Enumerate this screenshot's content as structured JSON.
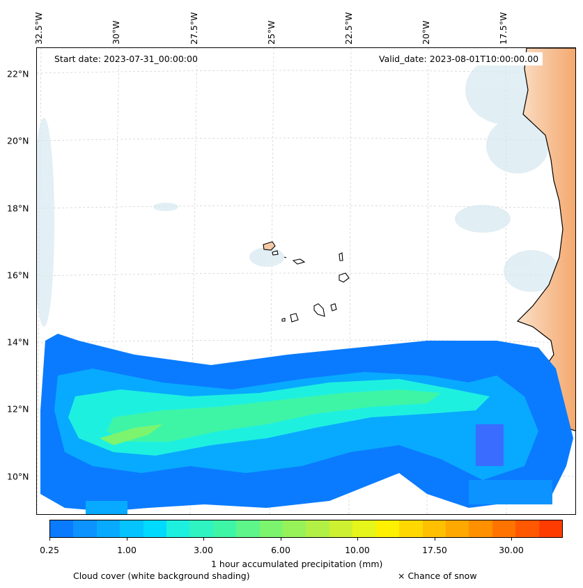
{
  "map": {
    "lon_labels": [
      "32.5°W",
      "30°W",
      "27.5°W",
      "25°W",
      "22.5°W",
      "20°W",
      "17.5°W"
    ],
    "lat_labels": [
      "22°N",
      "20°N",
      "18°N",
      "16°N",
      "14°N",
      "12°N",
      "10°N"
    ],
    "start_date": "Start date: 2023-07-31_00:00:00",
    "valid_date": "Valid_date: 2023-08-01T10:00:00.00"
  },
  "colorbar": {
    "colors": [
      "#0a7bff",
      "#0d93ff",
      "#08aaff",
      "#04c3ff",
      "#00daff",
      "#1ef0e0",
      "#2ff3c0",
      "#3ef5a6",
      "#5ef58a",
      "#7cf46e",
      "#97f25a",
      "#b2f046",
      "#cdf031",
      "#e6f51a",
      "#fdf000",
      "#ffd800",
      "#ffc000",
      "#ffa800",
      "#ff9000",
      "#ff7400",
      "#ff5800",
      "#ff3c00"
    ],
    "tick_labels": [
      "0.25",
      "1.00",
      "3.00",
      "6.00",
      "10.00",
      "17.50",
      "30.00"
    ],
    "label": "1 hour accumulated precipitation (mm)"
  },
  "legend": {
    "cloud_cover": "Cloud cover (white background shading)",
    "snow": "× Chance of snow"
  },
  "colors": {
    "land": "#f6c7a0",
    "land_edge": "#f19a5a",
    "cloud": "#d5e8f0",
    "grid": "#cccccc"
  }
}
